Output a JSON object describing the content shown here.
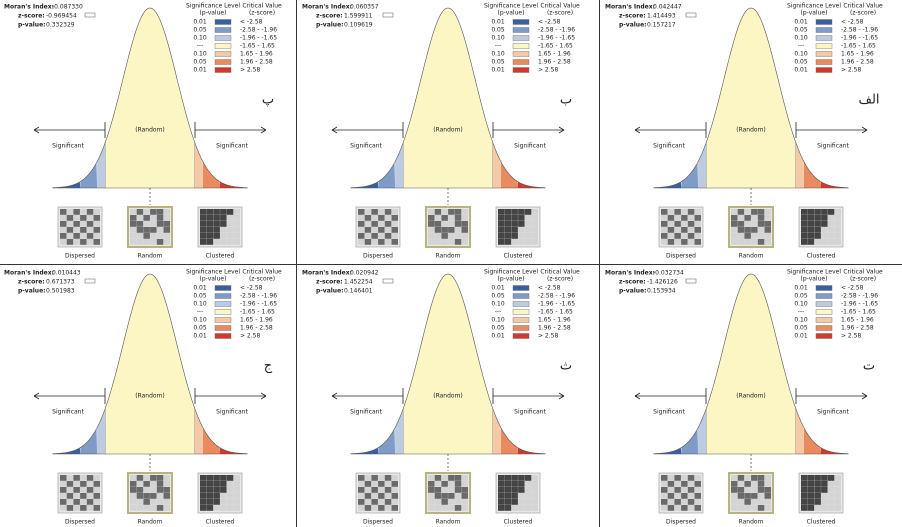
{
  "labels": {
    "index_label": "Moran's Index:",
    "z_label": "z-score:",
    "p_label": "p-value:",
    "significant": "Significant",
    "random": "(Random)",
    "dispersed": "Dispersed",
    "random_map": "Random",
    "clustered": "Clustered"
  },
  "legend": {
    "significance_title": "Significance Level",
    "significance_unit": "(p-value)",
    "critical_title": "Critical Value",
    "critical_unit": "(z-score)",
    "rows": [
      {
        "p": "0.01",
        "z": "< -2.58",
        "color": "#3a5f9e"
      },
      {
        "p": "0.05",
        "z": "-2.58 - -1.96",
        "color": "#7f9cc8"
      },
      {
        "p": "0.10",
        "z": "-1.96 - -1.65",
        "color": "#bccbe2"
      },
      {
        "p": "---",
        "z": "-1.65 - 1.65",
        "color": "#fbf6c4"
      },
      {
        "p": "0.10",
        "z": "1.65 - 1.96",
        "color": "#f6c9a6"
      },
      {
        "p": "0.05",
        "z": "1.96 - 2.58",
        "color": "#e98a5f"
      },
      {
        "p": "0.01",
        "z": "> 2.58",
        "color": "#cf3a2c"
      }
    ]
  },
  "panels": [
    {
      "letter": "پ",
      "moran_index": "-0.087330",
      "z_score": "-0.969454",
      "p_value": "0.332329"
    },
    {
      "letter": "ب",
      "moran_index": "0.060357",
      "z_score": "1.599911",
      "p_value": "0.109619"
    },
    {
      "letter": "الف",
      "moran_index": "0.042447",
      "z_score": "1.414493",
      "p_value": "0.157217"
    },
    {
      "letter": "ج",
      "moran_index": "0.010443",
      "z_score": "0.671373",
      "p_value": "0.501983"
    },
    {
      "letter": "ث",
      "moran_index": "0.020942",
      "z_score": "1.452254",
      "p_value": "0.146401"
    },
    {
      "letter": "ت",
      "moran_index": "-0.032734",
      "z_score": "-1.426126",
      "p_value": "0.153934"
    }
  ]
}
